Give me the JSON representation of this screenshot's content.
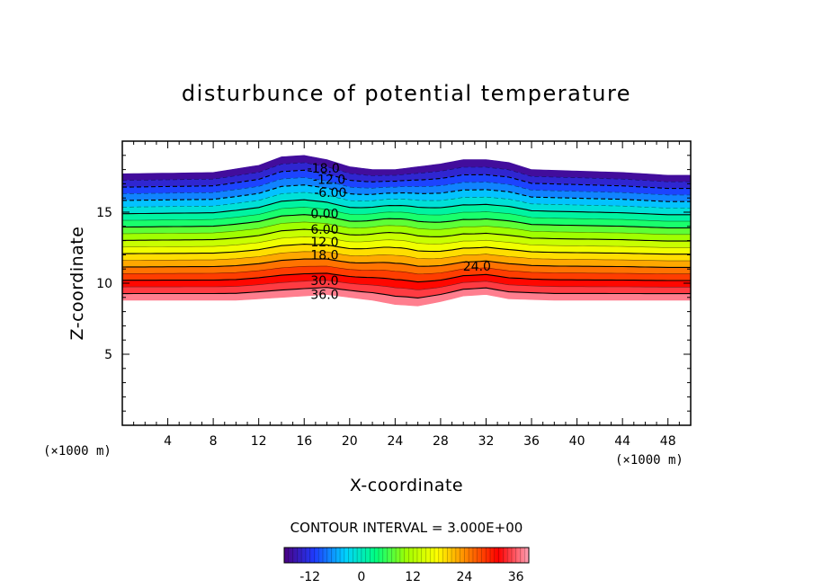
{
  "chart_data": {
    "type": "contour",
    "title": "disturbunce of potential temperature",
    "xlabel": "X-coordinate",
    "ylabel": "Z-coordinate",
    "x_unit": "(×1000 m)",
    "y_unit": "(×1000 m)",
    "xlim": [
      0,
      50
    ],
    "ylim": [
      0,
      20
    ],
    "x_ticks": [
      4,
      8,
      12,
      16,
      20,
      24,
      28,
      32,
      36,
      40,
      44,
      48
    ],
    "y_ticks": [
      5,
      10,
      15
    ],
    "contour_interval_text": "CONTOUR INTERVAL = 3.000E+00",
    "colorbar": {
      "min": -18,
      "max": 39,
      "ticks": [
        -12,
        0,
        12,
        24,
        36
      ],
      "colors": [
        "#4b0082",
        "#1e3cff",
        "#00d2ff",
        "#00ff80",
        "#a0ff00",
        "#ffff00",
        "#ff8000",
        "#ff0000",
        "#ffa0b4"
      ]
    },
    "contour_labels": [
      {
        "text": "-18.0",
        "x": 17.7,
        "z": 18.1
      },
      {
        "text": "-12.0",
        "x": 18.2,
        "z": 17.3
      },
      {
        "text": "-6.00",
        "x": 18.3,
        "z": 16.4
      },
      {
        "text": "0.00",
        "x": 17.8,
        "z": 14.9
      },
      {
        "text": "6.00",
        "x": 17.8,
        "z": 13.8
      },
      {
        "text": "12.0",
        "x": 17.8,
        "z": 12.9
      },
      {
        "text": "18.0",
        "x": 17.8,
        "z": 12.0
      },
      {
        "text": "24.0",
        "x": 31.2,
        "z": 11.2
      },
      {
        "text": "30.0",
        "x": 17.8,
        "z": 10.2
      },
      {
        "text": "36.0",
        "x": 17.8,
        "z": 9.2
      }
    ],
    "top_boundary": [
      [
        0,
        17.7
      ],
      [
        8,
        17.8
      ],
      [
        12,
        18.3
      ],
      [
        14,
        18.9
      ],
      [
        16,
        19.0
      ],
      [
        18,
        18.7
      ],
      [
        20,
        18.2
      ],
      [
        22,
        18.0
      ],
      [
        24,
        18.0
      ],
      [
        28,
        18.4
      ],
      [
        30,
        18.7
      ],
      [
        32,
        18.7
      ],
      [
        34,
        18.5
      ],
      [
        36,
        18.0
      ],
      [
        40,
        17.9
      ],
      [
        44,
        17.8
      ],
      [
        48,
        17.6
      ],
      [
        50,
        17.6
      ]
    ],
    "bottom_boundary": [
      [
        0,
        8.8
      ],
      [
        10,
        8.8
      ],
      [
        14,
        9.0
      ],
      [
        18,
        9.2
      ],
      [
        20,
        9.0
      ],
      [
        22,
        8.8
      ],
      [
        24,
        8.5
      ],
      [
        26,
        8.4
      ],
      [
        28,
        8.7
      ],
      [
        30,
        9.1
      ],
      [
        32,
        9.2
      ],
      [
        34,
        8.9
      ],
      [
        38,
        8.8
      ],
      [
        50,
        8.8
      ]
    ]
  }
}
